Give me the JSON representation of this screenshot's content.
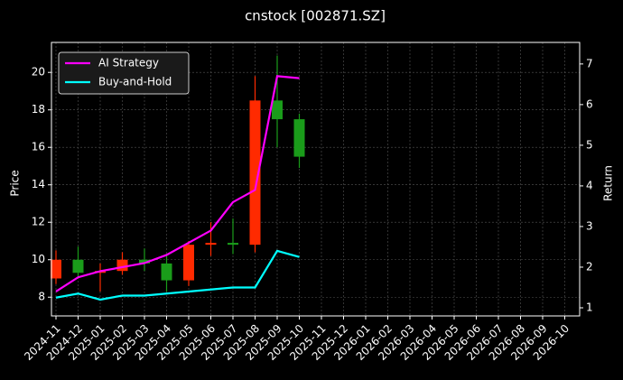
{
  "chart_data": {
    "type": "candlestick",
    "title": "cnstock [002871.SZ]",
    "ylabel": "Price",
    "y2label": "Return",
    "x": [
      "2024-11",
      "2024-12",
      "2025-01",
      "2025-02",
      "2025-03",
      "2025-04",
      "2025-05",
      "2025-06",
      "2025-07",
      "2025-08",
      "2025-09",
      "2025-10"
    ],
    "open": [
      9.0,
      10.0,
      9.3,
      9.4,
      10.0,
      9.8,
      8.9,
      10.8,
      10.9,
      10.8,
      18.5,
      17.5
    ],
    "high": [
      10.5,
      10.7,
      9.8,
      10.4,
      10.6,
      10.2,
      11.0,
      12.0,
      12.2,
      19.8,
      20.9,
      17.8
    ],
    "low": [
      8.7,
      9.0,
      8.3,
      9.2,
      9.4,
      8.3,
      8.6,
      10.2,
      10.3,
      10.4,
      16.0,
      14.9
    ],
    "close": [
      10.0,
      9.3,
      9.4,
      10.0,
      9.8,
      8.9,
      10.8,
      10.9,
      10.8,
      18.5,
      17.5,
      15.5
    ],
    "up_color": "#ff2a00",
    "down_color": "#1a9c1a",
    "series": [
      {
        "name": "AI Strategy",
        "color": "#ff00ff",
        "axis": "y2",
        "values": [
          1.4,
          1.75,
          1.9,
          2.0,
          2.1,
          2.3,
          2.6,
          2.9,
          3.6,
          3.9,
          6.7,
          6.65
        ]
      },
      {
        "name": "Buy-and-Hold",
        "color": "#00ffff",
        "axis": "y2",
        "values": [
          1.25,
          1.35,
          1.2,
          1.3,
          1.3,
          1.35,
          1.4,
          1.45,
          1.5,
          1.5,
          2.4,
          2.25
        ]
      }
    ],
    "xticks": [
      "2024-11",
      "2024-12",
      "2025-01",
      "2025-02",
      "2025-03",
      "2025-04",
      "2025-05",
      "2025-06",
      "2025-07",
      "2025-08",
      "2025-09",
      "2025-10",
      "2025-11",
      "2025-12",
      "2026-01",
      "2026-02",
      "2026-03",
      "2026-04",
      "2026-05",
      "2026-06",
      "2026-07",
      "2026-08",
      "2026-09",
      "2026-10"
    ],
    "ylim": [
      7.0,
      21.6
    ],
    "yticks": [
      8,
      10,
      12,
      14,
      16,
      18,
      20
    ],
    "y2lim": [
      0.8,
      7.53
    ],
    "y2ticks": [
      1,
      2,
      3,
      4,
      5,
      6,
      7
    ],
    "grid": true,
    "legend": "upper left"
  }
}
